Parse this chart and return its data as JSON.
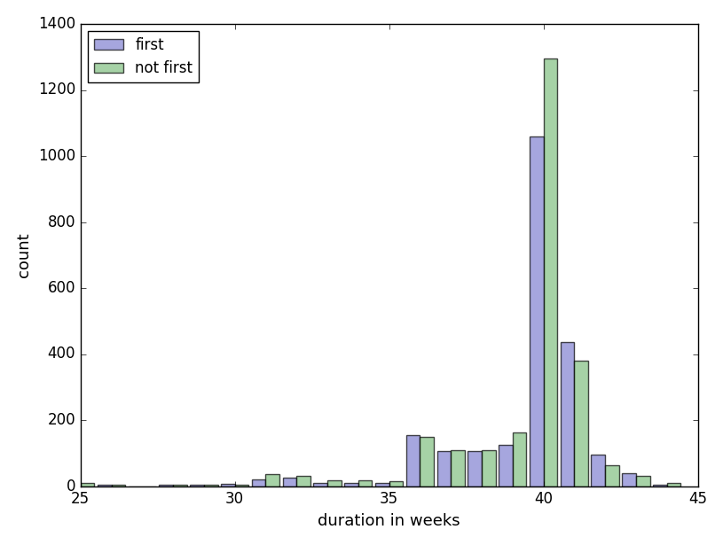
{
  "xlabel": "duration in weeks",
  "ylabel": "count",
  "xlim": [
    25,
    45
  ],
  "ylim": [
    0,
    1400
  ],
  "yticks": [
    0,
    200,
    400,
    600,
    800,
    1000,
    1200,
    1400
  ],
  "xticks": [
    25,
    30,
    35,
    40,
    45
  ],
  "weeks": [
    25,
    26,
    27,
    28,
    29,
    30,
    31,
    32,
    33,
    34,
    35,
    36,
    37,
    38,
    39,
    40,
    41,
    42,
    43,
    44
  ],
  "first": [
    8,
    3,
    0,
    5,
    5,
    7,
    20,
    25,
    10,
    10,
    10,
    155,
    105,
    105,
    125,
    1060,
    435,
    95,
    40,
    5
  ],
  "not_first": [
    10,
    3,
    0,
    5,
    5,
    5,
    35,
    30,
    18,
    18,
    15,
    148,
    110,
    110,
    163,
    1295,
    380,
    62,
    30,
    10
  ],
  "color_first": "#8080d0",
  "color_not_first": "#80c080",
  "alpha": 0.7,
  "legend_labels": [
    "first",
    "not first"
  ],
  "bar_width": 0.45
}
